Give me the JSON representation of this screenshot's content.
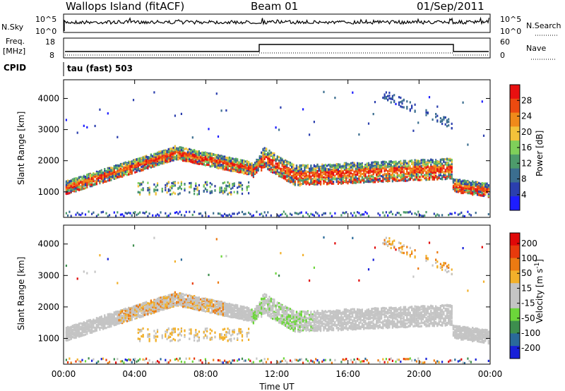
{
  "header": {
    "station": "Wallops Island (fitACF)",
    "beam": "Beam 01",
    "date": "01/Sep/2011"
  },
  "noise_panel": {
    "left_label": "N.Sky",
    "right_label": "N.Search",
    "left_ticks": [
      "10^5",
      "10^0"
    ],
    "right_ticks": [
      "10^5",
      "10^0"
    ]
  },
  "freq_panel": {
    "left_label_line1": "Freq.",
    "left_label_line2": "[MHz]",
    "left_ticks": [
      "18",
      "8"
    ],
    "right_label": "Nave",
    "right_ticks": [
      "60",
      "0"
    ]
  },
  "cpid": {
    "label": "CPID",
    "value": "tau (fast) 503"
  },
  "colors": {
    "power_scale": [
      "#1d1dff",
      "#2b3fae",
      "#3b6e8f",
      "#4d9b6b",
      "#7fcf5a",
      "#f3c23a",
      "#f08a1a",
      "#ec4a10",
      "#e81010"
    ],
    "velocity_scale": [
      "#1820d8",
      "#2a6a9a",
      "#3d8e4e",
      "#6cd63a",
      "#c4c4c4",
      "#c4c4c4",
      "#f2b02a",
      "#ec7a12",
      "#e83a0c",
      "#e00808"
    ]
  },
  "chart_data": [
    {
      "type": "heatmap",
      "name": "power",
      "ylabel": "Slant Range [km]",
      "ylim": [
        180,
        4600
      ],
      "yticks": [
        "1000",
        "2000",
        "3000",
        "4000"
      ],
      "colorbar_label": "Power [dB]",
      "colorbar_ticks": [
        "4",
        "8",
        "12",
        "16",
        "20",
        "24",
        "28"
      ],
      "colorbar_range": [
        0,
        32
      ]
    },
    {
      "type": "heatmap",
      "name": "velocity",
      "ylabel": "Slant Range [km]",
      "ylim": [
        180,
        4600
      ],
      "yticks": [
        "1000",
        "2000",
        "3000",
        "4000"
      ],
      "colorbar_label": "Velocity [m s^-1]",
      "colorbar_ticks": [
        "200",
        "100",
        "50",
        "15",
        "-15",
        "-50",
        "-100",
        "-200"
      ]
    }
  ],
  "x_axis": {
    "label": "Time UT",
    "ticks": [
      "00:00",
      "04:00",
      "08:00",
      "12:00",
      "16:00",
      "20:00",
      "00:00"
    ]
  }
}
